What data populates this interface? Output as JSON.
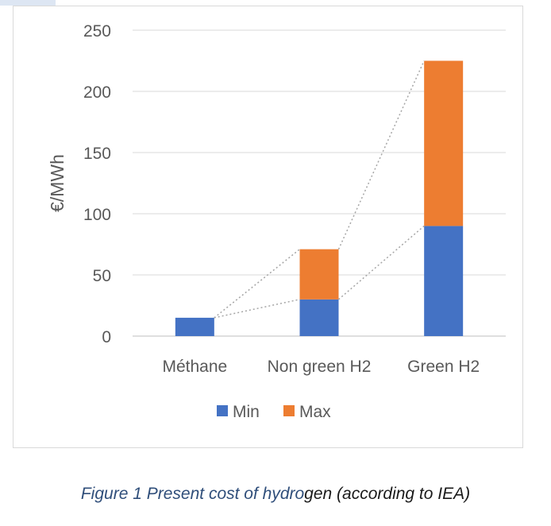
{
  "chart_data": {
    "type": "bar",
    "stacked": true,
    "categories": [
      "Méthane",
      "Non green H2",
      "Green H2"
    ],
    "series": [
      {
        "name": "Min",
        "color": "#4472c4",
        "values": [
          15,
          30,
          90
        ]
      },
      {
        "name": "Max",
        "color": "#ed7d31",
        "values": [
          0,
          41,
          135
        ]
      }
    ],
    "ylabel": "€/MWh",
    "ylim": [
      0,
      250
    ],
    "yticks": [
      0,
      50,
      100,
      150,
      200,
      250
    ],
    "grid": true,
    "legend_position": "bottom",
    "connector_lines": "dotted"
  },
  "caption": {
    "part1": "Figure 1 Present cost of hydro",
    "part2": "gen (according to IEA)"
  }
}
